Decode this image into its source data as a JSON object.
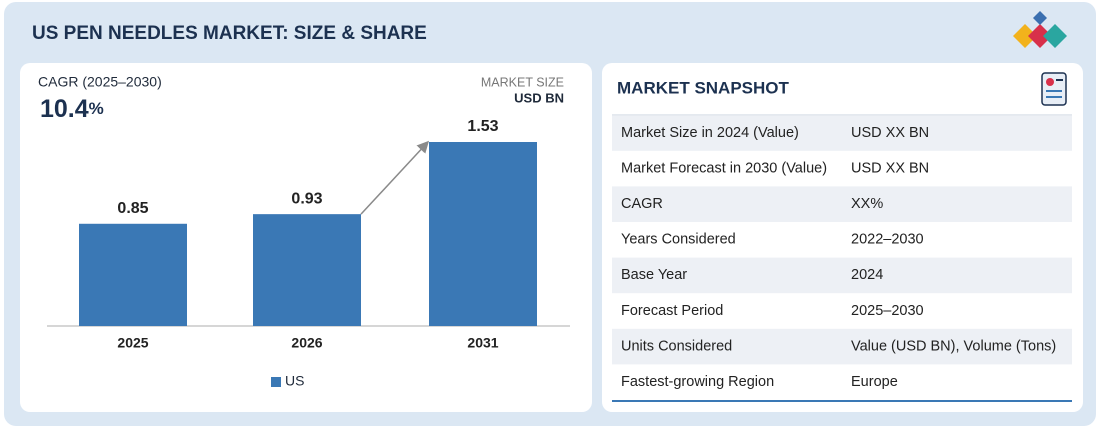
{
  "header": {
    "title": "US PEN NEEDLES MARKET: SIZE & SHARE"
  },
  "chart_data": {
    "type": "bar",
    "cagr_label": "CAGR (2025–2030)",
    "cagr_value": "10.4",
    "cagr_unit": "%",
    "unit_title": "MARKET SIZE",
    "unit": "USD BN",
    "categories": [
      "2025",
      "2026",
      "2031"
    ],
    "series": [
      {
        "name": "US",
        "color": "#3a78b5",
        "values": [
          0.85,
          0.93,
          1.53
        ]
      }
    ],
    "legend": "bottom"
  },
  "snapshot": {
    "title": "MARKET SNAPSHOT",
    "rows": [
      [
        "Market Size in 2024 (Value)",
        "USD XX BN"
      ],
      [
        "Market Forecast in 2030 (Value)",
        "USD XX BN"
      ],
      [
        "CAGR",
        "XX%"
      ],
      [
        "Years Considered",
        "2022–2030"
      ],
      [
        "Base Year",
        "2024"
      ],
      [
        "Forecast Period",
        "2025–2030"
      ],
      [
        "Units Considered",
        "Value (USD BN), Volume (Tons)"
      ],
      [
        "Fastest-growing Region",
        "Europe"
      ]
    ]
  }
}
